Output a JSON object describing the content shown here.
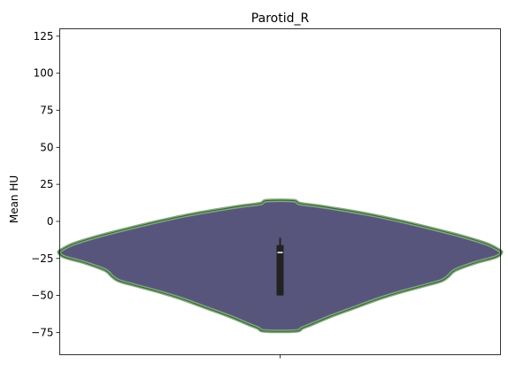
{
  "chart_data": {
    "type": "violin",
    "title": "Parotid_R",
    "xlabel": "",
    "ylabel": "Mean HU",
    "ylim": [
      -90,
      130
    ],
    "yticks": [
      -75,
      -50,
      -25,
      0,
      25,
      50,
      75,
      100,
      125
    ],
    "ytick_labels": [
      "−75",
      "−50",
      "−25",
      "0",
      "25",
      "50",
      "75",
      "100",
      "125"
    ],
    "xticks": [
      ""
    ],
    "grid": false,
    "colors": {
      "violin_fill": "#58557d",
      "violin_edge": "#7faa7a",
      "inner_edge": "#3a5a3a",
      "box": "#222222",
      "median": "#ffffff"
    },
    "violin": {
      "min": -74,
      "max": 14,
      "profile": [
        {
          "y": 14,
          "half_width": 0.06
        },
        {
          "y": 12,
          "half_width": 0.09
        },
        {
          "y": 10,
          "half_width": 0.19
        },
        {
          "y": 5,
          "half_width": 0.39
        },
        {
          "y": 0,
          "half_width": 0.55
        },
        {
          "y": -5,
          "half_width": 0.69
        },
        {
          "y": -10,
          "half_width": 0.82
        },
        {
          "y": -15,
          "half_width": 0.93
        },
        {
          "y": -19,
          "half_width": 0.985
        },
        {
          "y": -21,
          "half_width": 1.0
        },
        {
          "y": -24,
          "half_width": 0.975
        },
        {
          "y": -28,
          "half_width": 0.88
        },
        {
          "y": -33,
          "half_width": 0.79
        },
        {
          "y": -37,
          "half_width": 0.76
        },
        {
          "y": -40,
          "half_width": 0.73
        },
        {
          "y": -43,
          "half_width": 0.66
        },
        {
          "y": -47,
          "half_width": 0.56
        },
        {
          "y": -52,
          "half_width": 0.45
        },
        {
          "y": -58,
          "half_width": 0.34
        },
        {
          "y": -64,
          "half_width": 0.23
        },
        {
          "y": -69,
          "half_width": 0.15
        },
        {
          "y": -72,
          "half_width": 0.1
        },
        {
          "y": -74,
          "half_width": 0.07
        }
      ]
    },
    "box": {
      "whisker_low": -50,
      "q1": -50,
      "median": -21,
      "q3": -16,
      "whisker_high": -11
    }
  }
}
